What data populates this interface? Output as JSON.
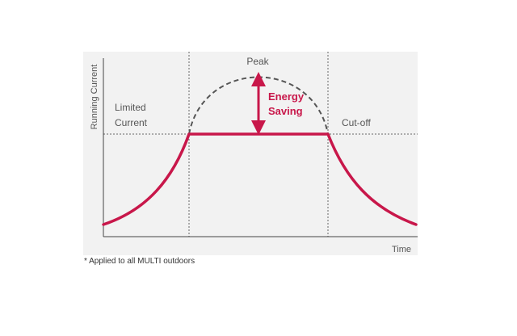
{
  "diagram": {
    "axes": {
      "y_label": "Running Current",
      "x_label": "Time"
    },
    "labels": {
      "limited_line1": "Limited",
      "limited_line2": "Current",
      "peak": "Peak",
      "saving_line1": "Energy",
      "saving_line2": "Saving",
      "cutoff": "Cut-off"
    },
    "footnote": "* Applied to all MULTI outdoors",
    "colors": {
      "panel_background": "#f2f2f2",
      "current_curve": "#c8174a",
      "peak_curve": "#555555",
      "axis": "#444444",
      "guide_lines": "#666666"
    }
  }
}
